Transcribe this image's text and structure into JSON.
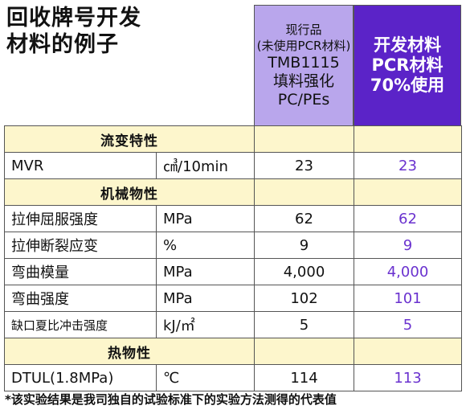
{
  "title": {
    "line1": "回收牌号开发",
    "line2": "材料的例子"
  },
  "header": {
    "current": {
      "lines": [
        "现行品",
        "(未使用PCR材料)",
        "TMB1115",
        "填料强化",
        "PC/PEs"
      ]
    },
    "developed": {
      "lines": [
        "开发材料",
        "PCR材料",
        "70%使用"
      ]
    }
  },
  "sections": [
    {
      "label": "流变特性",
      "rows": [
        {
          "property": "MVR",
          "unit": "㎤/10min",
          "current": "23",
          "developed": "23"
        }
      ]
    },
    {
      "label": "机械物性",
      "rows": [
        {
          "property": "拉伸屈服强度",
          "unit": "MPa",
          "current": "62",
          "developed": "62"
        },
        {
          "property": "拉伸断裂应变",
          "unit": "%",
          "current": "9",
          "developed": "9"
        },
        {
          "property": "弯曲模量",
          "unit": "MPa",
          "current": "4,000",
          "developed": "4,000"
        },
        {
          "property": "弯曲强度",
          "unit": "MPa",
          "current": "102",
          "developed": "101"
        },
        {
          "property": "缺口夏比冲击强度",
          "unit": "kJ/㎡",
          "current": "5",
          "developed": "5"
        }
      ]
    },
    {
      "label": "热物性",
      "rows": [
        {
          "property": "DTUL(1.8MPa)",
          "unit": "℃",
          "current": "114",
          "developed": "113"
        }
      ]
    }
  ],
  "footnote": "*该实验结果是我司独自的试验标准下的实验方法测得的代表值",
  "colors": {
    "current_header_bg": "#b9a6ec",
    "developed_header_bg": "#5b23c8",
    "section_bg": "#fdf6cc",
    "developed_value_text": "#6a32cf"
  }
}
